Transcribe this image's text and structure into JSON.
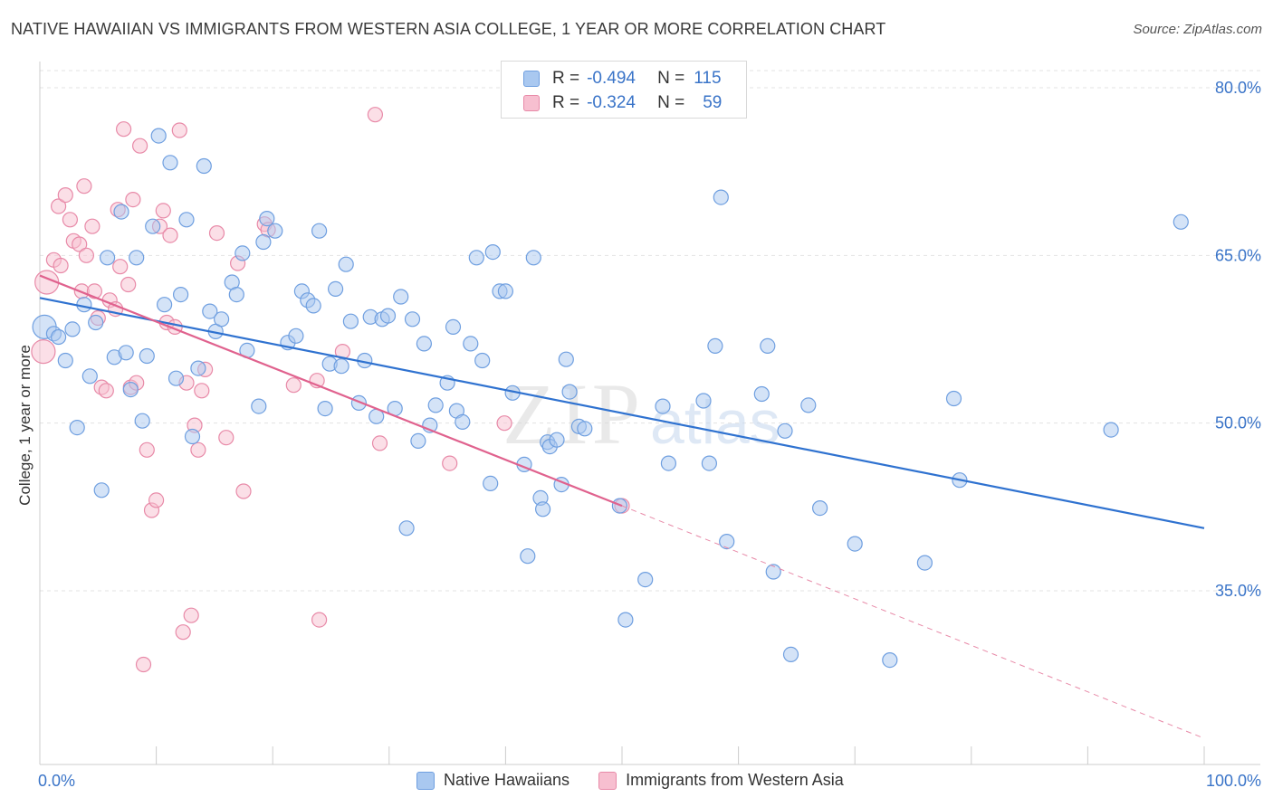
{
  "title": "NATIVE HAWAIIAN VS IMMIGRANTS FROM WESTERN ASIA COLLEGE, 1 YEAR OR MORE CORRELATION CHART",
  "source": "Source: ZipAtlas.com",
  "watermark": {
    "zip": "ZIP",
    "atlas": "atlas"
  },
  "legend": {
    "rows": [
      {
        "r_label": "R =",
        "r_value": "-0.494",
        "n_label": "N =",
        "n_value": "115",
        "color": "#a9c8f0",
        "border": "#6f9fe0"
      },
      {
        "r_label": "R =",
        "r_value": "-0.324",
        "n_label": "N =",
        "n_value": "59",
        "color": "#f7bfd0",
        "border": "#e88aa8"
      }
    ]
  },
  "bottom_legend": [
    {
      "label": "Native Hawaiians",
      "color": "#a9c8f0",
      "border": "#6f9fe0"
    },
    {
      "label": "Immigrants from Western Asia",
      "color": "#f7bfd0",
      "border": "#e88aa8"
    }
  ],
  "chart_data": {
    "type": "scatter",
    "title": "NATIVE HAWAIIAN VS IMMIGRANTS FROM WESTERN ASIA COLLEGE, 1 YEAR OR MORE CORRELATION CHART",
    "xlabel": "",
    "ylabel": "College, 1 year or more",
    "xlim": [
      0,
      100
    ],
    "ylim": [
      18,
      84
    ],
    "x_tick_labels": [
      "0.0%",
      "100.0%"
    ],
    "y_ticks": [
      35,
      50,
      65,
      80
    ],
    "y_tick_labels": [
      "35.0%",
      "50.0%",
      "65.0%",
      "80.0%"
    ],
    "grid": true,
    "legend_position": "top-center",
    "series": [
      {
        "name": "Native Hawaiians",
        "color": "#6f9fe0",
        "fill": "#a9c8f0",
        "trend": {
          "x": [
            0,
            100
          ],
          "y": [
            61.2,
            40.6
          ]
        },
        "points": [
          [
            0.4,
            58.6
          ],
          [
            1.2,
            58.0
          ],
          [
            1.6,
            57.7
          ],
          [
            2.2,
            55.6
          ],
          [
            2.8,
            58.4
          ],
          [
            3.2,
            49.6
          ],
          [
            3.8,
            60.6
          ],
          [
            4.3,
            54.2
          ],
          [
            4.8,
            59.0
          ],
          [
            5.3,
            44.0
          ],
          [
            5.8,
            64.8
          ],
          [
            6.4,
            55.9
          ],
          [
            7.0,
            68.9
          ],
          [
            7.4,
            56.3
          ],
          [
            7.8,
            53.0
          ],
          [
            8.3,
            64.8
          ],
          [
            8.8,
            50.2
          ],
          [
            9.2,
            56.0
          ],
          [
            9.7,
            67.6
          ],
          [
            10.2,
            75.7
          ],
          [
            10.7,
            60.6
          ],
          [
            11.2,
            73.3
          ],
          [
            11.7,
            54.0
          ],
          [
            12.1,
            61.5
          ],
          [
            12.6,
            68.2
          ],
          [
            13.1,
            48.8
          ],
          [
            13.6,
            54.9
          ],
          [
            14.1,
            73.0
          ],
          [
            14.6,
            60.0
          ],
          [
            15.1,
            58.2
          ],
          [
            15.6,
            59.3
          ],
          [
            16.5,
            62.6
          ],
          [
            16.9,
            61.5
          ],
          [
            17.4,
            65.2
          ],
          [
            17.8,
            56.5
          ],
          [
            18.8,
            51.5
          ],
          [
            19.2,
            66.2
          ],
          [
            19.5,
            68.3
          ],
          [
            20.2,
            67.2
          ],
          [
            21.3,
            57.2
          ],
          [
            22.0,
            57.8
          ],
          [
            22.5,
            61.8
          ],
          [
            23.0,
            61.0
          ],
          [
            23.5,
            60.5
          ],
          [
            24.0,
            67.2
          ],
          [
            24.5,
            51.3
          ],
          [
            24.9,
            55.3
          ],
          [
            25.4,
            62.0
          ],
          [
            25.9,
            55.1
          ],
          [
            26.3,
            64.2
          ],
          [
            26.7,
            59.1
          ],
          [
            27.4,
            51.8
          ],
          [
            27.9,
            55.6
          ],
          [
            28.4,
            59.5
          ],
          [
            28.9,
            50.6
          ],
          [
            29.4,
            59.3
          ],
          [
            29.9,
            59.6
          ],
          [
            30.5,
            51.3
          ],
          [
            31.0,
            61.3
          ],
          [
            31.5,
            40.6
          ],
          [
            32.0,
            59.3
          ],
          [
            32.5,
            48.4
          ],
          [
            33.0,
            57.1
          ],
          [
            33.5,
            49.8
          ],
          [
            34.0,
            51.6
          ],
          [
            35.0,
            53.6
          ],
          [
            35.5,
            58.6
          ],
          [
            35.8,
            51.1
          ],
          [
            36.3,
            50.1
          ],
          [
            37.0,
            57.1
          ],
          [
            37.5,
            64.8
          ],
          [
            38.0,
            55.6
          ],
          [
            38.7,
            44.6
          ],
          [
            38.9,
            65.3
          ],
          [
            39.5,
            61.8
          ],
          [
            40.0,
            61.8
          ],
          [
            40.6,
            52.7
          ],
          [
            41.6,
            46.3
          ],
          [
            41.9,
            38.1
          ],
          [
            42.4,
            64.8
          ],
          [
            43.0,
            43.3
          ],
          [
            43.2,
            42.3
          ],
          [
            43.6,
            48.3
          ],
          [
            43.8,
            47.9
          ],
          [
            44.4,
            48.5
          ],
          [
            44.8,
            44.5
          ],
          [
            45.2,
            55.7
          ],
          [
            45.5,
            52.8
          ],
          [
            46.3,
            49.7
          ],
          [
            46.8,
            49.5
          ],
          [
            49.8,
            42.6
          ],
          [
            50.3,
            32.4
          ],
          [
            52.0,
            36.0
          ],
          [
            53.5,
            51.5
          ],
          [
            54.0,
            46.4
          ],
          [
            57.0,
            52.0
          ],
          [
            57.5,
            46.4
          ],
          [
            58.0,
            56.9
          ],
          [
            58.5,
            70.2
          ],
          [
            59.0,
            39.4
          ],
          [
            62.0,
            52.6
          ],
          [
            62.5,
            56.9
          ],
          [
            63.0,
            36.7
          ],
          [
            64.0,
            49.3
          ],
          [
            64.5,
            29.3
          ],
          [
            66.0,
            51.6
          ],
          [
            67.0,
            42.4
          ],
          [
            70.0,
            39.2
          ],
          [
            73.0,
            28.8
          ],
          [
            76.0,
            37.5
          ],
          [
            78.5,
            52.2
          ],
          [
            79.0,
            44.9
          ],
          [
            92.0,
            49.4
          ],
          [
            98.0,
            68.0
          ]
        ]
      },
      {
        "name": "Immigrants from Western Asia",
        "color": "#e88aa8",
        "fill": "#f7bfd0",
        "trend": {
          "x": [
            0,
            50
          ],
          "y": [
            63.2,
            42.6
          ]
        },
        "trend_extension": {
          "x": [
            50,
            100
          ],
          "y": [
            42.6,
            21.8
          ]
        },
        "points": [
          [
            0.3,
            56.4
          ],
          [
            0.6,
            62.6
          ],
          [
            1.2,
            64.6
          ],
          [
            1.6,
            69.4
          ],
          [
            1.8,
            64.1
          ],
          [
            2.2,
            70.4
          ],
          [
            2.6,
            68.2
          ],
          [
            2.9,
            66.3
          ],
          [
            3.4,
            66.0
          ],
          [
            3.6,
            61.8
          ],
          [
            3.8,
            71.2
          ],
          [
            4.0,
            65.0
          ],
          [
            4.5,
            67.6
          ],
          [
            4.7,
            61.8
          ],
          [
            5.0,
            59.4
          ],
          [
            5.3,
            53.2
          ],
          [
            5.7,
            52.9
          ],
          [
            6.0,
            61.0
          ],
          [
            6.5,
            60.2
          ],
          [
            6.7,
            69.1
          ],
          [
            6.9,
            64.0
          ],
          [
            7.2,
            76.3
          ],
          [
            7.6,
            62.4
          ],
          [
            7.8,
            53.2
          ],
          [
            8.0,
            70.0
          ],
          [
            8.3,
            53.6
          ],
          [
            8.6,
            74.8
          ],
          [
            8.9,
            28.4
          ],
          [
            9.2,
            47.6
          ],
          [
            9.6,
            42.2
          ],
          [
            10.0,
            43.1
          ],
          [
            10.3,
            67.6
          ],
          [
            10.6,
            69.0
          ],
          [
            10.9,
            59.0
          ],
          [
            11.2,
            66.8
          ],
          [
            11.6,
            58.6
          ],
          [
            12.0,
            76.2
          ],
          [
            12.3,
            31.3
          ],
          [
            12.6,
            53.6
          ],
          [
            13.0,
            32.8
          ],
          [
            13.3,
            49.8
          ],
          [
            13.6,
            47.6
          ],
          [
            13.9,
            52.9
          ],
          [
            14.2,
            54.8
          ],
          [
            15.2,
            67.0
          ],
          [
            16.0,
            48.7
          ],
          [
            17.0,
            64.3
          ],
          [
            17.5,
            43.9
          ],
          [
            19.3,
            67.8
          ],
          [
            19.6,
            67.3
          ],
          [
            21.8,
            53.4
          ],
          [
            23.8,
            53.8
          ],
          [
            24.0,
            32.4
          ],
          [
            26.0,
            56.4
          ],
          [
            28.8,
            77.6
          ],
          [
            29.2,
            48.2
          ],
          [
            35.2,
            46.4
          ],
          [
            39.9,
            50.0
          ],
          [
            50.0,
            42.6
          ]
        ]
      }
    ]
  }
}
